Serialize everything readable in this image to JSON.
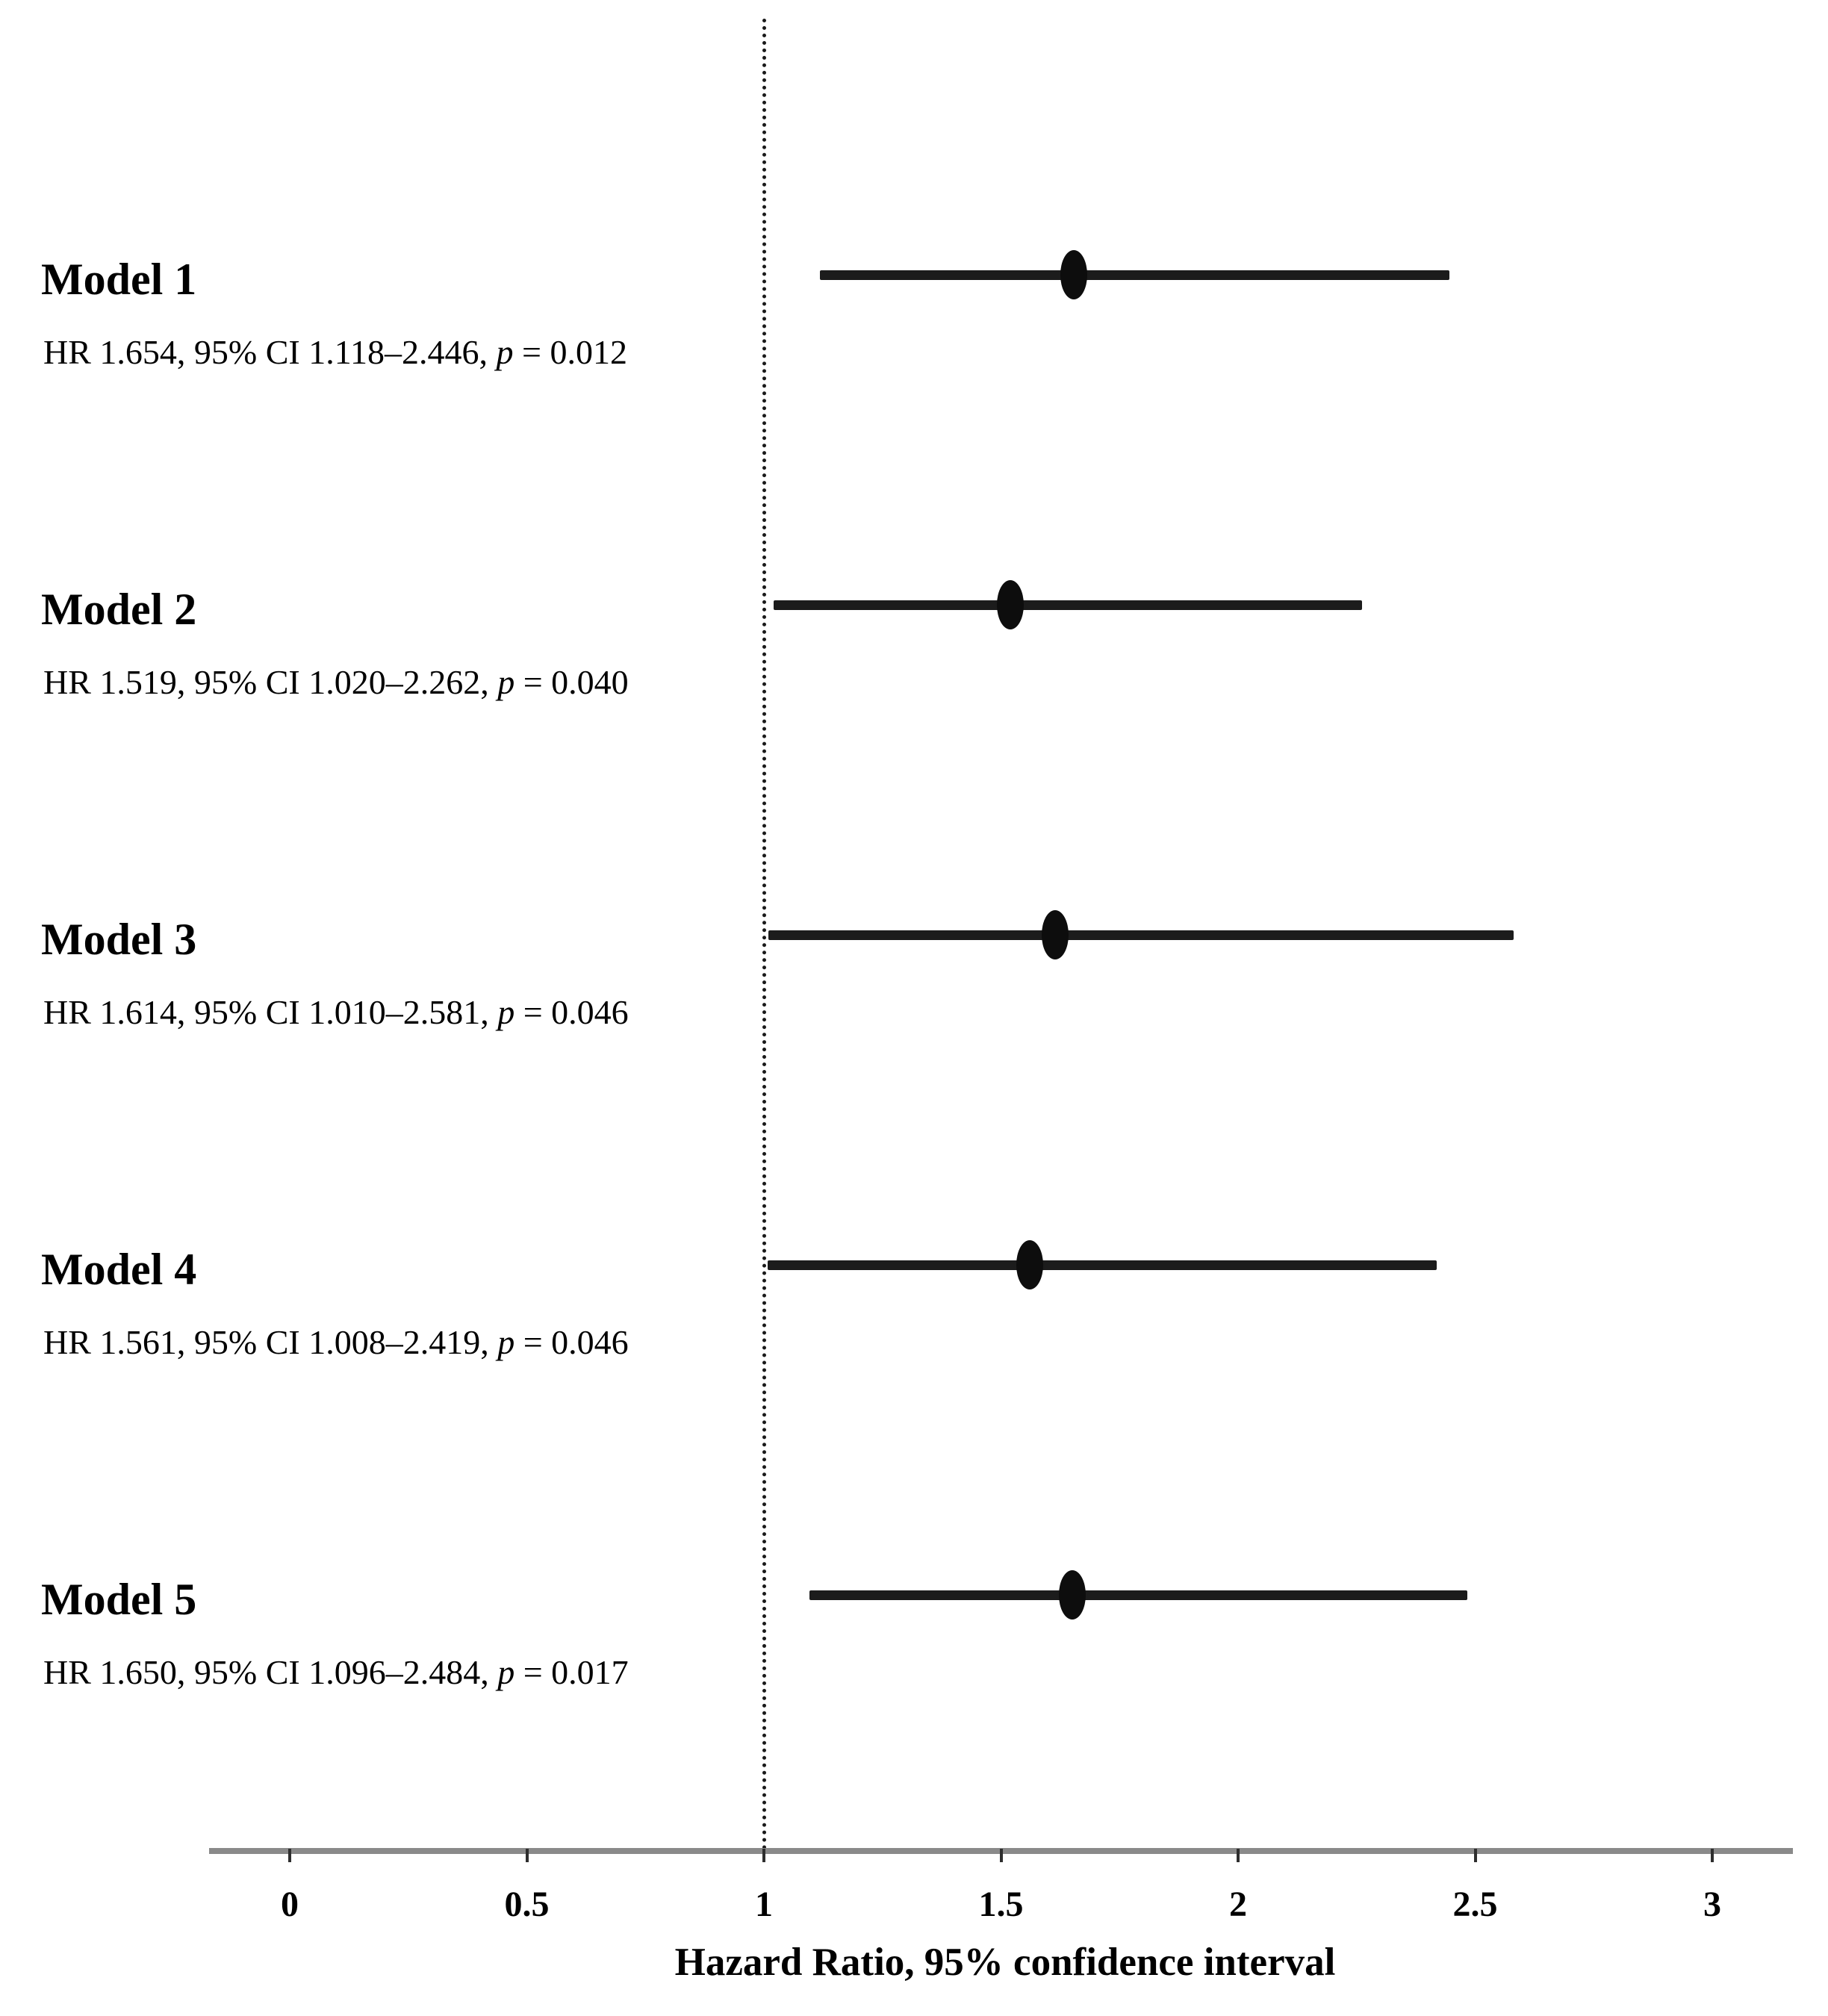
{
  "chart_data": {
    "type": "forest",
    "title": "",
    "xlabel": "Hazard Ratio, 95% confidence interval",
    "x_ticks": [
      0,
      0.5,
      1,
      1.5,
      2,
      2.5,
      3
    ],
    "x_tick_labels": [
      "0",
      "0.5",
      "1",
      "1.5",
      "2",
      "2.5",
      "3"
    ],
    "xlim": [
      -0.17,
      3.17
    ],
    "reference_line_x": 1,
    "grid": false,
    "legend": "none",
    "rows": [
      {
        "label": "Model 1",
        "hr": 1.654,
        "ci_low": 1.118,
        "ci_high": 2.446,
        "p": "0.012",
        "annotation_prefix": "HR 1.654, 95% CI 1.118–2.446, ",
        "p_label": "p",
        "p_suffix": " = 0.012"
      },
      {
        "label": "Model 2",
        "hr": 1.519,
        "ci_low": 1.02,
        "ci_high": 2.262,
        "p": "0.040",
        "annotation_prefix": "HR 1.519, 95% CI 1.020–2.262, ",
        "p_label": "p",
        "p_suffix": " = 0.040"
      },
      {
        "label": "Model 3",
        "hr": 1.614,
        "ci_low": 1.01,
        "ci_high": 2.581,
        "p": "0.046",
        "annotation_prefix": "HR 1.614, 95% CI 1.010–2.581, ",
        "p_label": "p",
        "p_suffix": " = 0.046"
      },
      {
        "label": "Model 4",
        "hr": 1.561,
        "ci_low": 1.008,
        "ci_high": 2.419,
        "p": "0.046",
        "annotation_prefix": "HR 1.561, 95% CI 1.008–2.419, ",
        "p_label": "p",
        "p_suffix": " = 0.046"
      },
      {
        "label": "Model 5",
        "hr": 1.65,
        "ci_low": 1.096,
        "ci_high": 2.484,
        "p": "0.017",
        "annotation_prefix": "HR 1.650, 95% CI 1.096–2.484, ",
        "p_label": "p",
        "p_suffix": " = 0.017"
      }
    ]
  },
  "colors": {
    "background": "#ffffff",
    "ci_line": "#1c1c1c",
    "marker": "#0d0d0d",
    "reference_line": "#1a1a1a",
    "axis_line": "#8a8a8a",
    "tick_mark": "#2e2e2e",
    "text": "#000000"
  }
}
